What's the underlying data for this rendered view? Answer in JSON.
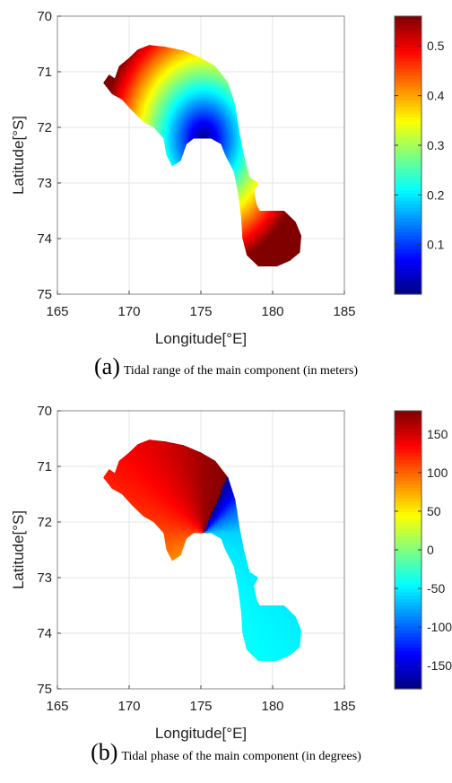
{
  "chart_data": [
    {
      "type": "heatmap",
      "panel_label": "(a)",
      "caption": "Tidal range of the main component (in meters)",
      "xlabel": "Longitude[°E]",
      "ylabel": "Latitude[°S]",
      "xlim": [
        165,
        185
      ],
      "ylim": [
        75,
        70
      ],
      "xticks": [
        "165",
        "170",
        "175",
        "180",
        "185"
      ],
      "yticks": [
        "70",
        "71",
        "72",
        "73",
        "74",
        "75"
      ],
      "grid": true,
      "colorbar": {
        "position": "right",
        "colormap": "jet",
        "range": [
          0,
          0.56
        ],
        "ticks": [
          "0.1",
          "0.2",
          "0.3",
          "0.4",
          "0.5"
        ],
        "tick_values": [
          0.1,
          0.2,
          0.3,
          0.4,
          0.5
        ]
      },
      "field": {
        "description_values": "minimum near 175.2°E 72.2°S, increasing outward",
        "min_center": [
          175.2,
          72.2
        ],
        "points": [
          {
            "lon": 175.2,
            "lat": 72.2,
            "value": 0.0
          },
          {
            "lon": 172.0,
            "lat": 71.2,
            "value": 0.3
          },
          {
            "lon": 170.0,
            "lat": 70.8,
            "value": 0.5
          },
          {
            "lon": 178.0,
            "lat": 73.0,
            "value": 0.2
          },
          {
            "lon": 180.5,
            "lat": 74.1,
            "value": 0.55
          }
        ]
      }
    },
    {
      "type": "heatmap",
      "panel_label": "(b)",
      "caption": "Tidal phase of the main component (in degrees)",
      "xlabel": "Longitude[°E]",
      "ylabel": "Latitude[°S]",
      "xlim": [
        165,
        185
      ],
      "ylim": [
        75,
        70
      ],
      "xticks": [
        "165",
        "170",
        "175",
        "180",
        "185"
      ],
      "yticks": [
        "70",
        "71",
        "72",
        "73",
        "74",
        "75"
      ],
      "grid": true,
      "colorbar": {
        "position": "right",
        "colormap": "jet",
        "range": [
          -180,
          180
        ],
        "ticks": [
          "150",
          "100",
          "50",
          "0",
          "-50",
          "-100",
          "-150"
        ],
        "tick_values": [
          150,
          100,
          50,
          0,
          -50,
          -100,
          -150
        ]
      },
      "field": {
        "amphidromic_point": [
          175.2,
          72.2
        ],
        "points": [
          {
            "lon": 170.0,
            "lat": 71.3,
            "value": 120
          },
          {
            "lon": 174.5,
            "lat": 70.8,
            "value": 150
          },
          {
            "lon": 177.0,
            "lat": 71.6,
            "value": -150
          },
          {
            "lon": 176.5,
            "lat": 72.6,
            "value": -60
          },
          {
            "lon": 180.5,
            "lat": 74.1,
            "value": -45
          }
        ]
      }
    }
  ]
}
